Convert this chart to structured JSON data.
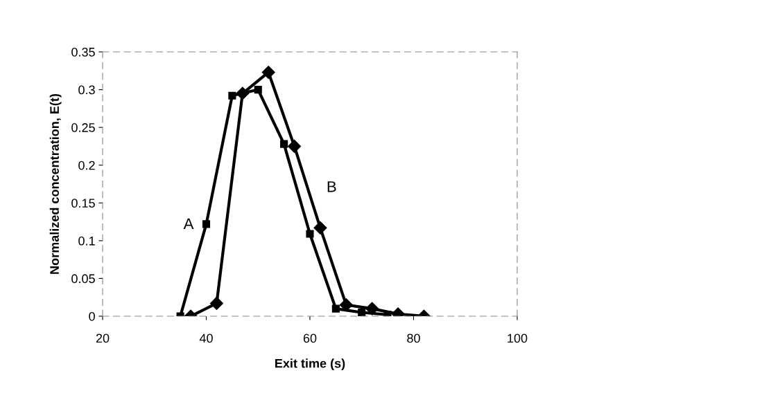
{
  "chart_data": {
    "type": "line",
    "xlabel": "Exit time (s)",
    "ylabel": "Normalized concentration, E(t)",
    "xlim": [
      20,
      100
    ],
    "xticks": [
      20,
      40,
      60,
      80,
      100
    ],
    "ylim": [
      0,
      0.35
    ],
    "yticks": [
      0,
      0.05,
      0.1,
      0.15,
      0.2,
      0.25,
      0.3,
      0.35
    ],
    "grid": false,
    "legend": false,
    "series": [
      {
        "name": "A",
        "color": "#000000",
        "marker": "square",
        "x": [
          35,
          40,
          45,
          50,
          55,
          60,
          65,
          70,
          75
        ],
        "values": [
          0,
          0.122,
          0.292,
          0.3,
          0.228,
          0.109,
          0.01,
          0.005,
          0.002
        ]
      },
      {
        "name": "B",
        "color": "#000000",
        "marker": "diamond",
        "x": [
          37,
          42,
          47,
          52,
          57,
          62,
          67,
          72,
          77,
          82
        ],
        "values": [
          0,
          0.017,
          0.295,
          0.323,
          0.225,
          0.117,
          0.015,
          0.01,
          0.003,
          0
        ]
      }
    ]
  }
}
